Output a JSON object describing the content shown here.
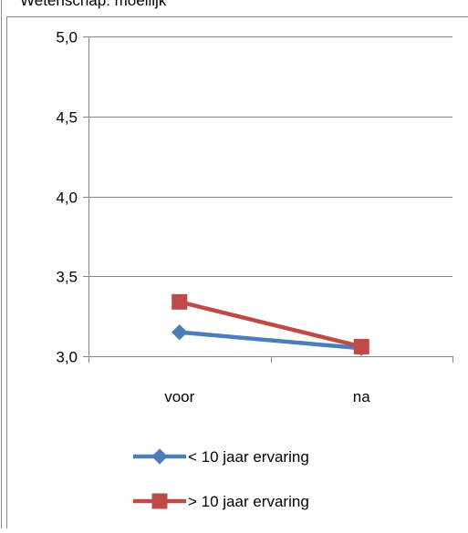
{
  "chart_data": {
    "type": "line",
    "title": "Wetenschap: moeilijk",
    "categories": [
      "voor",
      "na"
    ],
    "series": [
      {
        "name": "< 10 jaar ervaring",
        "values": [
          3.15,
          3.05
        ],
        "color": "#4a7ebb",
        "marker": "diamond"
      },
      {
        "name": "> 10 jaar ervaring",
        "values": [
          3.34,
          3.06
        ],
        "color": "#be4b48",
        "marker": "square"
      }
    ],
    "ylim": [
      3.0,
      5.0
    ],
    "yticks": [
      "3,0",
      "3,5",
      "4,0",
      "4,5",
      "5,0"
    ],
    "ytick_values": [
      3.0,
      3.5,
      4.0,
      4.5,
      5.0
    ],
    "grid": true,
    "legend": "bottom"
  }
}
